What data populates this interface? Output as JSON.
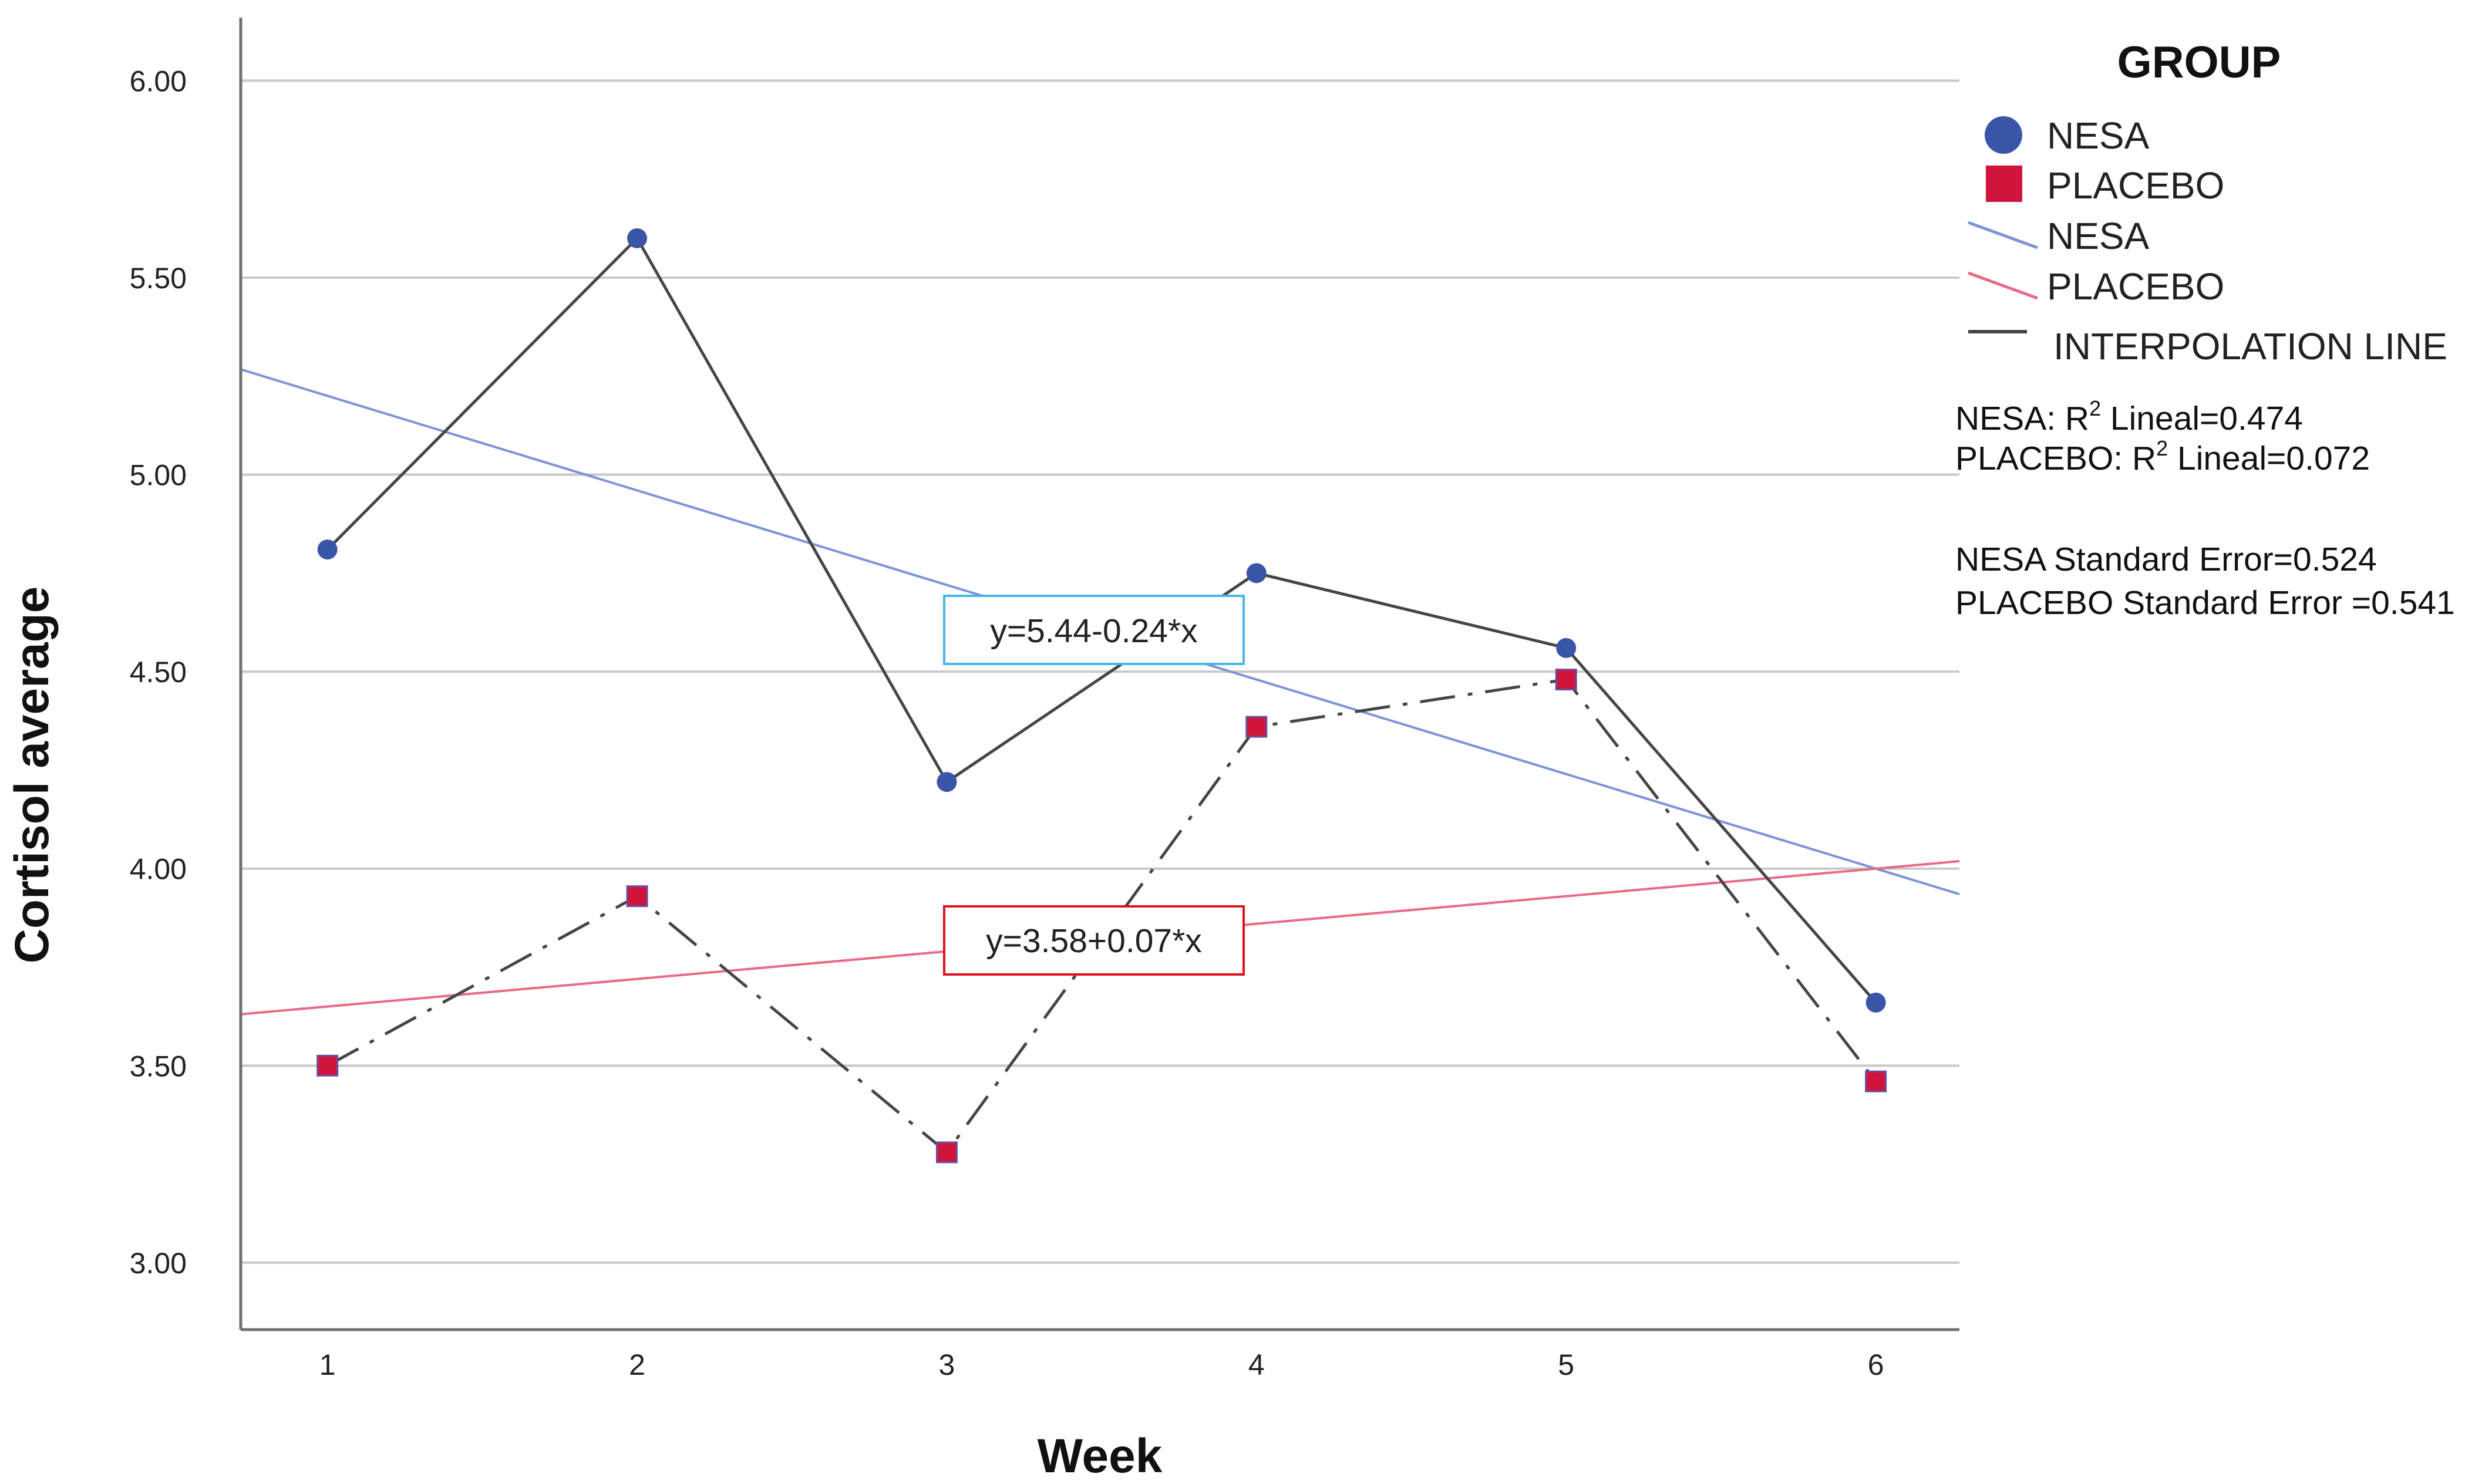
{
  "chart_data": {
    "type": "line",
    "xlabel": "Week",
    "ylabel": "Cortisol average",
    "x": [
      1,
      2,
      3,
      4,
      5,
      6
    ],
    "x_tick_labels": [
      "1",
      "2",
      "3",
      "4",
      "5",
      "6"
    ],
    "xlim": [
      0.72,
      6.27
    ],
    "ylim": [
      2.83,
      6.16
    ],
    "y_ticks": [
      3.0,
      3.5,
      4.0,
      4.5,
      5.0,
      5.5,
      6.0
    ],
    "y_tick_labels": [
      "3.00",
      "3.50",
      "4.00",
      "4.50",
      "5.00",
      "5.50",
      "6.00"
    ],
    "grid": "horizontal",
    "series": [
      {
        "name": "NESA",
        "marker": "circle",
        "color": "#3a55a8",
        "values": [
          4.81,
          5.6,
          4.22,
          4.75,
          4.56,
          3.66
        ]
      },
      {
        "name": "PLACEBO",
        "marker": "square",
        "color": "#d0143c",
        "values": [
          3.5,
          3.93,
          3.28,
          4.36,
          4.48,
          3.46
        ]
      }
    ],
    "fit_lines": [
      {
        "name": "NESA",
        "intercept": 5.44,
        "slope": -0.24,
        "equation": "y=5.44-0.24*x",
        "color": "#7b93d8"
      },
      {
        "name": "PLACEBO",
        "intercept": 3.58,
        "slope": 0.07,
        "equation": "y=3.58+0.07*x",
        "color": "#e86a86"
      }
    ],
    "legend": {
      "title": "GROUP",
      "placement": "right",
      "items": [
        {
          "label": "NESA",
          "kind": "circle",
          "color": "#3a55a8"
        },
        {
          "label": "PLACEBO",
          "kind": "square",
          "color": "#d0143c"
        },
        {
          "label": "NESA",
          "kind": "line",
          "color": "#7b93d8"
        },
        {
          "label": "PLACEBO",
          "kind": "line",
          "color": "#e86a86"
        },
        {
          "label": "INTERPOLATION LINE",
          "kind": "line",
          "color": "#444444"
        }
      ]
    },
    "stats": {
      "r2": [
        {
          "prefix": "NESA: R",
          "sup": "2",
          "suffix": " Lineal=0.474"
        },
        {
          "prefix": "PLACEBO: R",
          "sup": "2",
          "suffix": " Lineal=0.072"
        }
      ],
      "standard_error": [
        "NESA Standard Error=0.524",
        "PLACEBO Standard Error =0.541"
      ]
    }
  }
}
